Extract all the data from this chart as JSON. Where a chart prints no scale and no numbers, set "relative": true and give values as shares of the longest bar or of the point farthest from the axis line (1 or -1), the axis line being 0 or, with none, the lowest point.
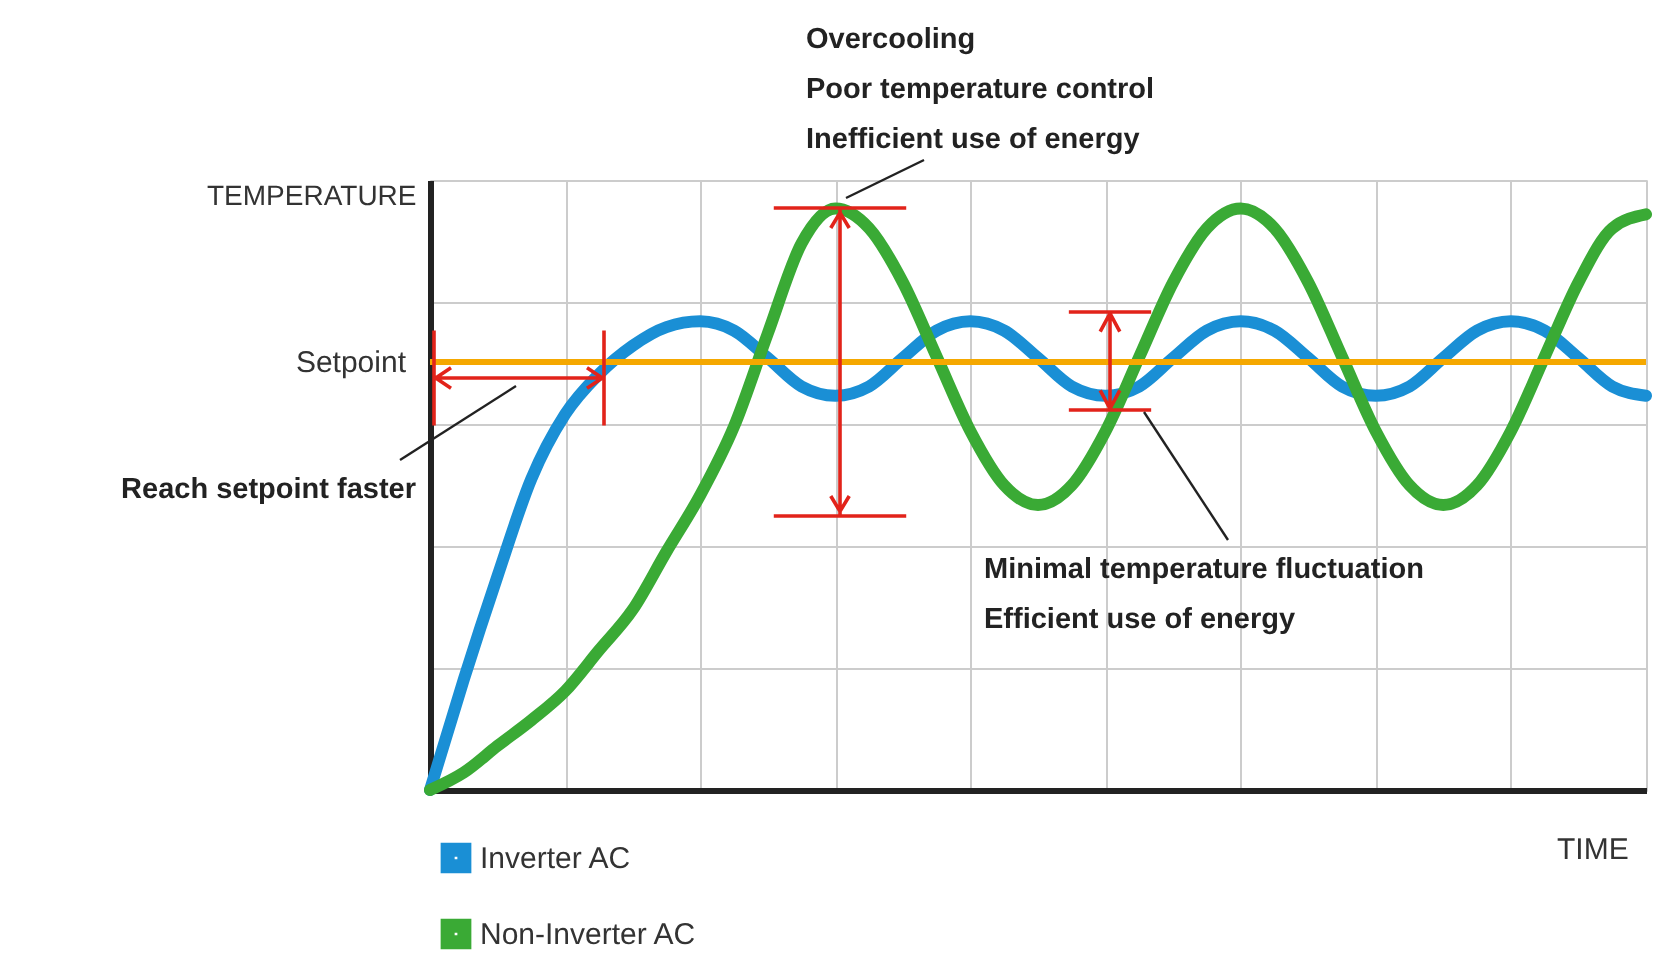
{
  "chart_data": {
    "type": "line",
    "relative": true,
    "xlabel": "TIME",
    "ylabel": "TEMPERATURE",
    "categories": [
      null,
      null,
      null,
      null,
      null,
      null,
      null,
      null,
      null,
      null,
      null,
      null,
      null,
      null,
      null,
      null,
      null,
      null,
      null,
      null,
      null,
      null,
      null,
      null,
      null,
      null,
      null,
      null,
      null,
      null,
      null,
      null,
      null,
      null,
      null,
      null,
      null
    ],
    "series": [
      {
        "name": "Inverter AC",
        "color": "#1a8fd5",
        "values": [
          0,
          0.19,
          0.368,
          0.535,
          0.646,
          0.715,
          0.764,
          0.796,
          0.806,
          0.79,
          0.743,
          0.694,
          0.678,
          0.694,
          0.743,
          0.79,
          0.806,
          0.79,
          0.743,
          0.694,
          0.678,
          0.694,
          0.743,
          0.79,
          0.806,
          0.79,
          0.743,
          0.694,
          0.678,
          0.694,
          0.743,
          0.79,
          0.806,
          0.79,
          0.743,
          0.694,
          0.678
        ]
      },
      {
        "name": "Non-Inverter AC",
        "color": "#3aaa35",
        "values": [
          0,
          0.03,
          0.076,
          0.12,
          0.17,
          0.24,
          0.31,
          0.41,
          0.507,
          0.625,
          0.785,
          0.94,
          1,
          0.966,
          0.873,
          0.745,
          0.617,
          0.524,
          0.49,
          0.524,
          0.617,
          0.745,
          0.873,
          0.966,
          1,
          0.966,
          0.873,
          0.745,
          0.617,
          0.524,
          0.49,
          0.524,
          0.617,
          0.745,
          0.873,
          0.966,
          0.99
        ]
      }
    ],
    "ref_lines": [
      {
        "axis": "y",
        "value": 0.736,
        "label": "Setpoint",
        "color": "#f5a800"
      }
    ],
    "annotations": [
      "Overcooling",
      "Poor temperature control",
      "Inefficient use of energy",
      "Reach setpoint faster",
      "Minimal temperature fluctuation",
      "Efficient use of energy"
    ],
    "grid": true,
    "legend": "bottom left",
    "tick_labels": false,
    "line_style": "solid",
    "marker": "none"
  }
}
